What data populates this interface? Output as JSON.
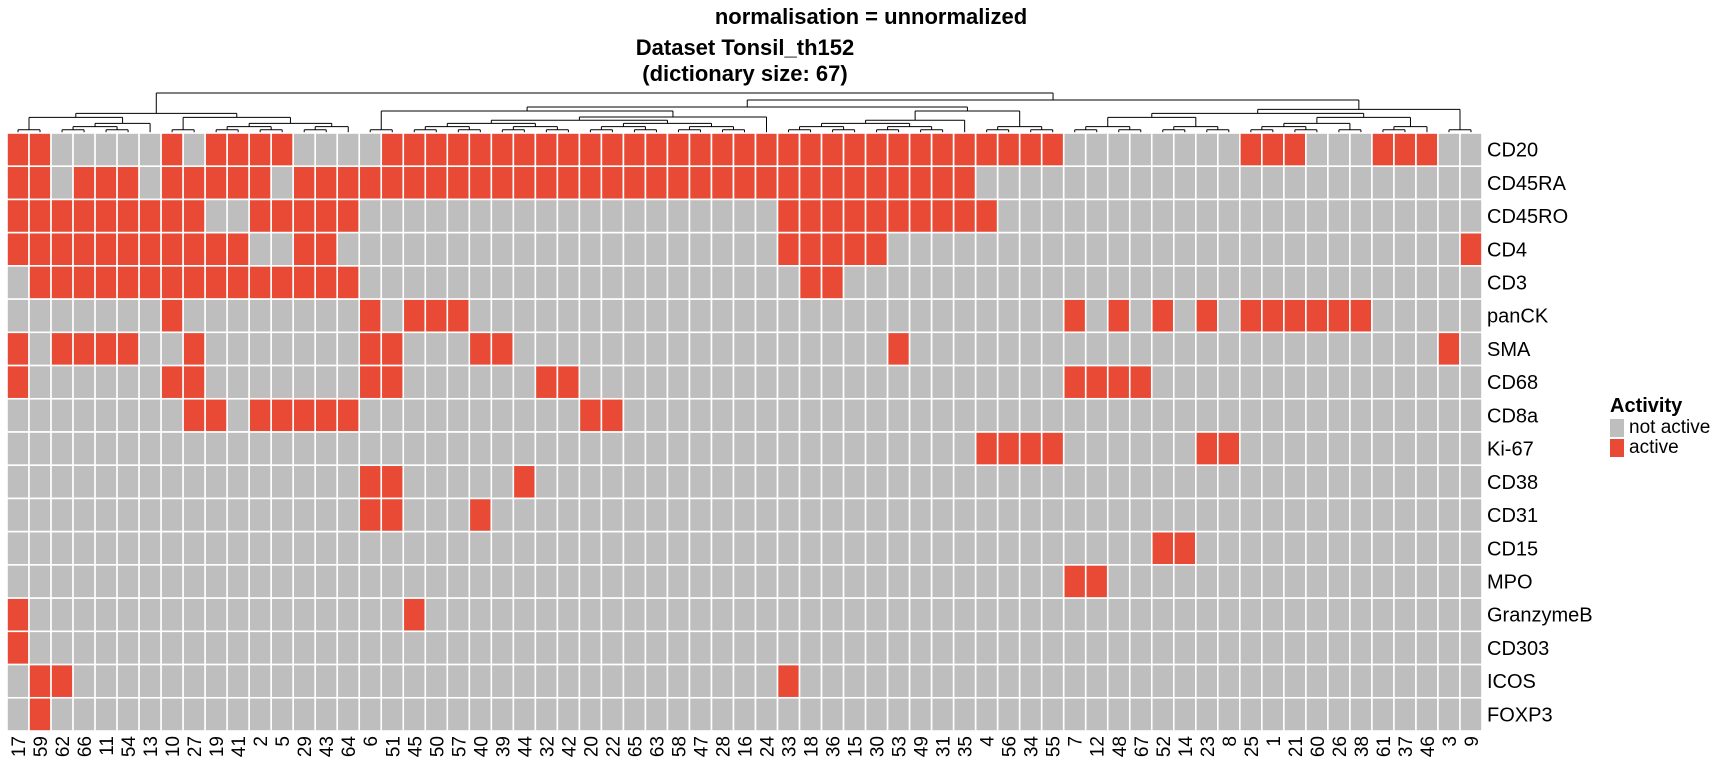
{
  "title_line1": "normalisation = unnormalized",
  "title_line2": "Dataset Tonsil_th152",
  "title_line3": "(dictionary size: 67)",
  "legend": {
    "title": "Activity",
    "items": [
      {
        "label": "not active",
        "color": "#BEBEBE"
      },
      {
        "label": "active",
        "color": "#E84A35"
      }
    ]
  },
  "chart_data": {
    "type": "heatmap",
    "columns": [
      "17",
      "59",
      "62",
      "66",
      "11",
      "54",
      "13",
      "10",
      "27",
      "19",
      "41",
      "2",
      "5",
      "29",
      "43",
      "64",
      "6",
      "51",
      "45",
      "50",
      "57",
      "40",
      "39",
      "44",
      "32",
      "42",
      "20",
      "22",
      "65",
      "63",
      "58",
      "47",
      "28",
      "16",
      "24",
      "33",
      "18",
      "36",
      "15",
      "30",
      "53",
      "49",
      "31",
      "35",
      "4",
      "56",
      "34",
      "55",
      "7",
      "12",
      "48",
      "67",
      "52",
      "14",
      "23",
      "8",
      "25",
      "1",
      "21",
      "60",
      "26",
      "38",
      "61",
      "37",
      "46",
      "3",
      "9"
    ],
    "rows": [
      "CD20",
      "CD45RA",
      "CD45RO",
      "CD4",
      "CD3",
      "panCK",
      "SMA",
      "CD68",
      "CD8a",
      "Ki-67",
      "CD38",
      "CD31",
      "CD15",
      "MPO",
      "GranzymeB",
      "CD303",
      "ICOS",
      "FOXP3"
    ],
    "values": [
      [
        1,
        1,
        0,
        0,
        0,
        0,
        0,
        1,
        0,
        1,
        1,
        1,
        1,
        0,
        0,
        0,
        0,
        1,
        1,
        1,
        1,
        1,
        1,
        1,
        1,
        1,
        1,
        1,
        1,
        1,
        1,
        1,
        1,
        1,
        1,
        1,
        1,
        1,
        1,
        1,
        1,
        1,
        1,
        1,
        1,
        1,
        1,
        1,
        0,
        0,
        0,
        0,
        0,
        0,
        0,
        0,
        1,
        1,
        1,
        0,
        0,
        0,
        1,
        1,
        1,
        0,
        0
      ],
      [
        1,
        1,
        0,
        1,
        1,
        1,
        0,
        1,
        1,
        1,
        1,
        1,
        0,
        1,
        1,
        1,
        1,
        1,
        1,
        1,
        1,
        1,
        1,
        1,
        1,
        1,
        1,
        1,
        1,
        1,
        1,
        1,
        1,
        1,
        1,
        1,
        1,
        1,
        1,
        1,
        1,
        1,
        1,
        1,
        0,
        0,
        0,
        0,
        0,
        0,
        0,
        0,
        0,
        0,
        0,
        0,
        0,
        0,
        0,
        0,
        0,
        0,
        0,
        0,
        0,
        0,
        0
      ],
      [
        1,
        1,
        1,
        1,
        1,
        1,
        1,
        1,
        1,
        0,
        0,
        1,
        1,
        1,
        1,
        1,
        0,
        0,
        0,
        0,
        0,
        0,
        0,
        0,
        0,
        0,
        0,
        0,
        0,
        0,
        0,
        0,
        0,
        0,
        0,
        1,
        1,
        1,
        1,
        1,
        1,
        1,
        1,
        1,
        1,
        0,
        0,
        0,
        0,
        0,
        0,
        0,
        0,
        0,
        0,
        0,
        0,
        0,
        0,
        0,
        0,
        0,
        0,
        0,
        0,
        0,
        0
      ],
      [
        1,
        1,
        1,
        1,
        1,
        1,
        1,
        1,
        1,
        1,
        1,
        0,
        0,
        1,
        1,
        0,
        0,
        0,
        0,
        0,
        0,
        0,
        0,
        0,
        0,
        0,
        0,
        0,
        0,
        0,
        0,
        0,
        0,
        0,
        0,
        1,
        1,
        1,
        1,
        1,
        0,
        0,
        0,
        0,
        0,
        0,
        0,
        0,
        0,
        0,
        0,
        0,
        0,
        0,
        0,
        0,
        0,
        0,
        0,
        0,
        0,
        0,
        0,
        0,
        0,
        0,
        1
      ],
      [
        0,
        1,
        1,
        1,
        1,
        1,
        1,
        1,
        1,
        1,
        1,
        1,
        1,
        1,
        1,
        1,
        0,
        0,
        0,
        0,
        0,
        0,
        0,
        0,
        0,
        0,
        0,
        0,
        0,
        0,
        0,
        0,
        0,
        0,
        0,
        0,
        1,
        1,
        0,
        0,
        0,
        0,
        0,
        0,
        0,
        0,
        0,
        0,
        0,
        0,
        0,
        0,
        0,
        0,
        0,
        0,
        0,
        0,
        0,
        0,
        0,
        0,
        0,
        0,
        0,
        0,
        0
      ],
      [
        0,
        0,
        0,
        0,
        0,
        0,
        0,
        1,
        0,
        0,
        0,
        0,
        0,
        0,
        0,
        0,
        1,
        0,
        1,
        1,
        1,
        0,
        0,
        0,
        0,
        0,
        0,
        0,
        0,
        0,
        0,
        0,
        0,
        0,
        0,
        0,
        0,
        0,
        0,
        0,
        0,
        0,
        0,
        0,
        0,
        0,
        0,
        0,
        1,
        0,
        1,
        0,
        1,
        0,
        1,
        0,
        1,
        1,
        1,
        1,
        1,
        1,
        0,
        0,
        0,
        0,
        0
      ],
      [
        1,
        0,
        1,
        1,
        1,
        1,
        0,
        0,
        1,
        0,
        0,
        0,
        0,
        0,
        0,
        0,
        1,
        1,
        0,
        0,
        0,
        1,
        1,
        0,
        0,
        0,
        0,
        0,
        0,
        0,
        0,
        0,
        0,
        0,
        0,
        0,
        0,
        0,
        0,
        0,
        1,
        0,
        0,
        0,
        0,
        0,
        0,
        0,
        0,
        0,
        0,
        0,
        0,
        0,
        0,
        0,
        0,
        0,
        0,
        0,
        0,
        0,
        0,
        0,
        0,
        1,
        0
      ],
      [
        1,
        0,
        0,
        0,
        0,
        0,
        0,
        1,
        1,
        0,
        0,
        0,
        0,
        0,
        0,
        0,
        1,
        1,
        0,
        0,
        0,
        0,
        0,
        0,
        1,
        1,
        0,
        0,
        0,
        0,
        0,
        0,
        0,
        0,
        0,
        0,
        0,
        0,
        0,
        0,
        0,
        0,
        0,
        0,
        0,
        0,
        0,
        0,
        1,
        1,
        1,
        1,
        0,
        0,
        0,
        0,
        0,
        0,
        0,
        0,
        0,
        0,
        0,
        0,
        0,
        0,
        0
      ],
      [
        0,
        0,
        0,
        0,
        0,
        0,
        0,
        0,
        1,
        1,
        0,
        1,
        1,
        1,
        1,
        1,
        0,
        0,
        0,
        0,
        0,
        0,
        0,
        0,
        0,
        0,
        1,
        1,
        0,
        0,
        0,
        0,
        0,
        0,
        0,
        0,
        0,
        0,
        0,
        0,
        0,
        0,
        0,
        0,
        0,
        0,
        0,
        0,
        0,
        0,
        0,
        0,
        0,
        0,
        0,
        0,
        0,
        0,
        0,
        0,
        0,
        0,
        0,
        0,
        0,
        0,
        0
      ],
      [
        0,
        0,
        0,
        0,
        0,
        0,
        0,
        0,
        0,
        0,
        0,
        0,
        0,
        0,
        0,
        0,
        0,
        0,
        0,
        0,
        0,
        0,
        0,
        0,
        0,
        0,
        0,
        0,
        0,
        0,
        0,
        0,
        0,
        0,
        0,
        0,
        0,
        0,
        0,
        0,
        0,
        0,
        0,
        0,
        1,
        1,
        1,
        1,
        0,
        0,
        0,
        0,
        0,
        0,
        1,
        1,
        0,
        0,
        0,
        0,
        0,
        0,
        0,
        0,
        0,
        0,
        0
      ],
      [
        0,
        0,
        0,
        0,
        0,
        0,
        0,
        0,
        0,
        0,
        0,
        0,
        0,
        0,
        0,
        0,
        1,
        1,
        0,
        0,
        0,
        0,
        0,
        1,
        0,
        0,
        0,
        0,
        0,
        0,
        0,
        0,
        0,
        0,
        0,
        0,
        0,
        0,
        0,
        0,
        0,
        0,
        0,
        0,
        0,
        0,
        0,
        0,
        0,
        0,
        0,
        0,
        0,
        0,
        0,
        0,
        0,
        0,
        0,
        0,
        0,
        0,
        0,
        0,
        0,
        0,
        0
      ],
      [
        0,
        0,
        0,
        0,
        0,
        0,
        0,
        0,
        0,
        0,
        0,
        0,
        0,
        0,
        0,
        0,
        1,
        1,
        0,
        0,
        0,
        1,
        0,
        0,
        0,
        0,
        0,
        0,
        0,
        0,
        0,
        0,
        0,
        0,
        0,
        0,
        0,
        0,
        0,
        0,
        0,
        0,
        0,
        0,
        0,
        0,
        0,
        0,
        0,
        0,
        0,
        0,
        0,
        0,
        0,
        0,
        0,
        0,
        0,
        0,
        0,
        0,
        0,
        0,
        0,
        0,
        0
      ],
      [
        0,
        0,
        0,
        0,
        0,
        0,
        0,
        0,
        0,
        0,
        0,
        0,
        0,
        0,
        0,
        0,
        0,
        0,
        0,
        0,
        0,
        0,
        0,
        0,
        0,
        0,
        0,
        0,
        0,
        0,
        0,
        0,
        0,
        0,
        0,
        0,
        0,
        0,
        0,
        0,
        0,
        0,
        0,
        0,
        0,
        0,
        0,
        0,
        0,
        0,
        0,
        0,
        1,
        1,
        0,
        0,
        0,
        0,
        0,
        0,
        0,
        0,
        0,
        0,
        0,
        0,
        0
      ],
      [
        0,
        0,
        0,
        0,
        0,
        0,
        0,
        0,
        0,
        0,
        0,
        0,
        0,
        0,
        0,
        0,
        0,
        0,
        0,
        0,
        0,
        0,
        0,
        0,
        0,
        0,
        0,
        0,
        0,
        0,
        0,
        0,
        0,
        0,
        0,
        0,
        0,
        0,
        0,
        0,
        0,
        0,
        0,
        0,
        0,
        0,
        0,
        0,
        1,
        1,
        0,
        0,
        0,
        0,
        0,
        0,
        0,
        0,
        0,
        0,
        0,
        0,
        0,
        0,
        0,
        0,
        0
      ],
      [
        1,
        0,
        0,
        0,
        0,
        0,
        0,
        0,
        0,
        0,
        0,
        0,
        0,
        0,
        0,
        0,
        0,
        0,
        1,
        0,
        0,
        0,
        0,
        0,
        0,
        0,
        0,
        0,
        0,
        0,
        0,
        0,
        0,
        0,
        0,
        0,
        0,
        0,
        0,
        0,
        0,
        0,
        0,
        0,
        0,
        0,
        0,
        0,
        0,
        0,
        0,
        0,
        0,
        0,
        0,
        0,
        0,
        0,
        0,
        0,
        0,
        0,
        0,
        0,
        0,
        0,
        0
      ],
      [
        1,
        0,
        0,
        0,
        0,
        0,
        0,
        0,
        0,
        0,
        0,
        0,
        0,
        0,
        0,
        0,
        0,
        0,
        0,
        0,
        0,
        0,
        0,
        0,
        0,
        0,
        0,
        0,
        0,
        0,
        0,
        0,
        0,
        0,
        0,
        0,
        0,
        0,
        0,
        0,
        0,
        0,
        0,
        0,
        0,
        0,
        0,
        0,
        0,
        0,
        0,
        0,
        0,
        0,
        0,
        0,
        0,
        0,
        0,
        0,
        0,
        0,
        0,
        0,
        0,
        0,
        0
      ],
      [
        0,
        1,
        1,
        0,
        0,
        0,
        0,
        0,
        0,
        0,
        0,
        0,
        0,
        0,
        0,
        0,
        0,
        0,
        0,
        0,
        0,
        0,
        0,
        0,
        0,
        0,
        0,
        0,
        0,
        0,
        0,
        0,
        0,
        0,
        0,
        1,
        0,
        0,
        0,
        0,
        0,
        0,
        0,
        0,
        0,
        0,
        0,
        0,
        0,
        0,
        0,
        0,
        0,
        0,
        0,
        0,
        0,
        0,
        0,
        0,
        0,
        0,
        0,
        0,
        0,
        0,
        0
      ],
      [
        0,
        1,
        0,
        0,
        0,
        0,
        0,
        0,
        0,
        0,
        0,
        0,
        0,
        0,
        0,
        0,
        0,
        0,
        0,
        0,
        0,
        0,
        0,
        0,
        0,
        0,
        0,
        0,
        0,
        0,
        0,
        0,
        0,
        0,
        0,
        0,
        0,
        0,
        0,
        0,
        0,
        0,
        0,
        0,
        0,
        0,
        0,
        0,
        0,
        0,
        0,
        0,
        0,
        0,
        0,
        0,
        0,
        0,
        0,
        0,
        0,
        0,
        0,
        0,
        0,
        0,
        0
      ]
    ],
    "dendrogram_groups": [
      [
        [
          0,
          1
        ],
        [
          2,
          3,
          4,
          5,
          6
        ],
        [
          7,
          8
        ],
        [
          9,
          10,
          11,
          12,
          13,
          14,
          15
        ]
      ],
      [
        [
          16,
          17
        ],
        [
          18,
          19,
          20,
          21,
          22,
          23,
          24,
          25,
          26,
          27,
          28,
          29,
          30,
          31,
          32,
          33,
          34
        ],
        [
          35,
          36,
          37,
          38,
          39,
          40,
          41,
          42,
          43
        ],
        [
          44,
          45,
          46,
          47
        ]
      ],
      [
        [
          48,
          49,
          50,
          51
        ],
        [
          52,
          53,
          54,
          55
        ],
        [
          56,
          57,
          58,
          59,
          60,
          61
        ],
        [
          62,
          63,
          64
        ],
        [
          65,
          66
        ]
      ]
    ]
  }
}
